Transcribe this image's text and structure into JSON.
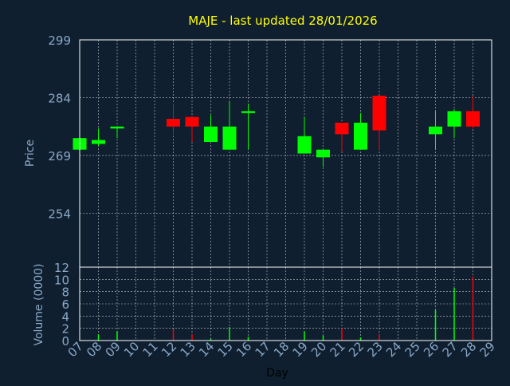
{
  "colors": {
    "background": "#0f1f2f",
    "title": "#ffff00",
    "axis_text": "#8aa8c8",
    "day_label": "#000000",
    "frame": "#ffffff",
    "grid": "#ffffff",
    "up": "#00ff00",
    "down": "#ff0000"
  },
  "chart_data": [
    {
      "type": "candlestick",
      "title": "MAJE - last updated 28/01/2026",
      "ylabel": "Price",
      "ylim": [
        240,
        299
      ],
      "yticks": [
        254,
        269,
        284,
        299
      ],
      "grid": true,
      "xlim": [
        7,
        29
      ],
      "candles": [
        {
          "day": 7,
          "open": 270.5,
          "high": 273.5,
          "low": 270.0,
          "close": 273.5
        },
        {
          "day": 8,
          "open": 272.0,
          "high": 276.0,
          "low": 271.5,
          "close": 273.0
        },
        {
          "day": 9,
          "open": 276.0,
          "high": 276.5,
          "low": 273.5,
          "close": 276.5
        },
        {
          "day": 12,
          "open": 278.5,
          "high": 282.5,
          "low": 274.5,
          "close": 276.5
        },
        {
          "day": 13,
          "open": 279.0,
          "high": 279.0,
          "low": 272.5,
          "close": 276.5
        },
        {
          "day": 14,
          "open": 272.5,
          "high": 279.5,
          "low": 272.5,
          "close": 276.5
        },
        {
          "day": 15,
          "open": 270.5,
          "high": 283.0,
          "low": 270.5,
          "close": 276.5
        },
        {
          "day": 16,
          "open": 280.0,
          "high": 282.5,
          "low": 270.5,
          "close": 280.5
        },
        {
          "day": 19,
          "open": 269.5,
          "high": 279.0,
          "low": 269.5,
          "close": 274.0
        },
        {
          "day": 20,
          "open": 268.5,
          "high": 270.5,
          "low": 266.0,
          "close": 270.5
        },
        {
          "day": 21,
          "open": 277.5,
          "high": 277.5,
          "low": 270.0,
          "close": 274.5
        },
        {
          "day": 22,
          "open": 270.5,
          "high": 280.0,
          "low": 270.5,
          "close": 277.5
        },
        {
          "day": 23,
          "open": 284.5,
          "high": 284.5,
          "low": 270.5,
          "close": 275.5
        },
        {
          "day": 26,
          "open": 274.5,
          "high": 280.5,
          "low": 270.5,
          "close": 276.5
        },
        {
          "day": 27,
          "open": 276.5,
          "high": 281.0,
          "low": 273.5,
          "close": 280.5
        },
        {
          "day": 28,
          "open": 280.5,
          "high": 284.5,
          "low": 276.0,
          "close": 276.5
        }
      ]
    },
    {
      "type": "bar",
      "ylabel": "Volume (0000)",
      "ylim": [
        0,
        12
      ],
      "yticks": [
        0,
        2,
        4,
        6,
        8,
        10,
        12
      ],
      "xlabel": "Day",
      "xticks": [
        "07",
        "08",
        "09",
        "10",
        "11",
        "12",
        "13",
        "14",
        "15",
        "16",
        "17",
        "18",
        "19",
        "20",
        "21",
        "22",
        "23",
        "24",
        "25",
        "26",
        "27",
        "28",
        "29"
      ],
      "xlim": [
        7,
        29
      ],
      "grid": true,
      "bars": [
        {
          "day": 7,
          "value": 0.1,
          "dir": "up"
        },
        {
          "day": 8,
          "value": 1.0,
          "dir": "up"
        },
        {
          "day": 9,
          "value": 1.5,
          "dir": "up"
        },
        {
          "day": 12,
          "value": 1.8,
          "dir": "down"
        },
        {
          "day": 13,
          "value": 1.0,
          "dir": "down"
        },
        {
          "day": 14,
          "value": 0.3,
          "dir": "up"
        },
        {
          "day": 15,
          "value": 2.2,
          "dir": "up"
        },
        {
          "day": 16,
          "value": 0.6,
          "dir": "up"
        },
        {
          "day": 19,
          "value": 1.5,
          "dir": "up"
        },
        {
          "day": 20,
          "value": 0.8,
          "dir": "up"
        },
        {
          "day": 21,
          "value": 2.0,
          "dir": "down"
        },
        {
          "day": 22,
          "value": 0.5,
          "dir": "up"
        },
        {
          "day": 23,
          "value": 1.0,
          "dir": "down"
        },
        {
          "day": 26,
          "value": 5.0,
          "dir": "up"
        },
        {
          "day": 27,
          "value": 8.6,
          "dir": "up"
        },
        {
          "day": 28,
          "value": 10.5,
          "dir": "down"
        }
      ]
    }
  ]
}
